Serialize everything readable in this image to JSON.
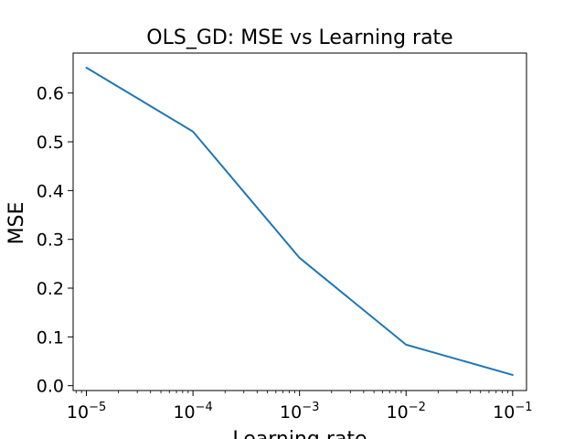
{
  "chart_data": {
    "type": "line",
    "title": "OLS_GD: MSE vs Learning rate",
    "xlabel": "Learning rate",
    "ylabel": "MSE",
    "xscale": "log",
    "xlim": [
      7.5e-06,
      0.135
    ],
    "ylim": [
      -0.01,
      0.682
    ],
    "grid": false,
    "x_ticks": [
      {
        "value": 1e-05,
        "base": "10",
        "exponent": "−5"
      },
      {
        "value": 0.0001,
        "base": "10",
        "exponent": "−4"
      },
      {
        "value": 0.001,
        "base": "10",
        "exponent": "−3"
      },
      {
        "value": 0.01,
        "base": "10",
        "exponent": "−2"
      },
      {
        "value": 0.1,
        "base": "10",
        "exponent": "−1"
      }
    ],
    "y_ticks": [
      {
        "value": 0.0,
        "label": "0.0"
      },
      {
        "value": 0.1,
        "label": "0.1"
      },
      {
        "value": 0.2,
        "label": "0.2"
      },
      {
        "value": 0.3,
        "label": "0.3"
      },
      {
        "value": 0.4,
        "label": "0.4"
      },
      {
        "value": 0.5,
        "label": "0.5"
      },
      {
        "value": 0.6,
        "label": "0.6"
      }
    ],
    "series": [
      {
        "color": "#1f77b4",
        "x": [
          1e-05,
          0.0001,
          0.001,
          0.01,
          0.1
        ],
        "y": [
          0.652,
          0.521,
          0.262,
          0.084,
          0.022
        ]
      }
    ]
  }
}
